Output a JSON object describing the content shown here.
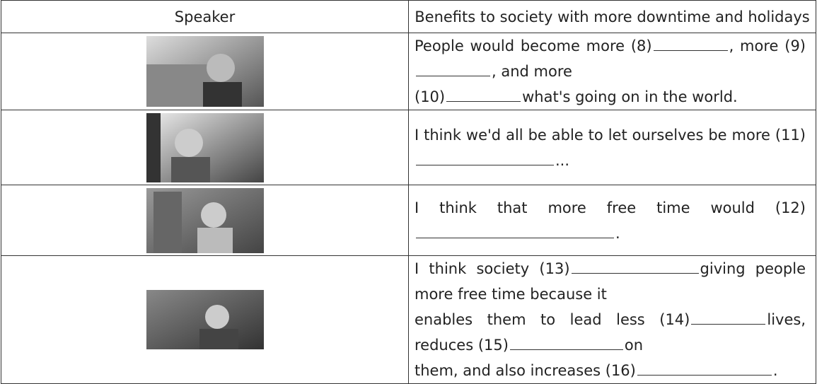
{
  "table": {
    "header": [
      "Speaker",
      "Benefits to society with more downtime and holidays"
    ],
    "rows": [
      {
        "text": [
          "People would become more (8)",
          ", more (9)",
          ", and more",
          "(10)",
          "what's going on in the world."
        ]
      },
      {
        "text": [
          "I think we'd all be able to let ourselves be more (11)",
          "..."
        ]
      },
      {
        "text": [
          "I think that more free time would (12)",
          "."
        ]
      },
      {
        "text": [
          "I think society (13)",
          "giving people more free time because it",
          "enables them to lead less (14)",
          "lives, reduces (15)",
          "on",
          "them, and also increases (16)",
          "."
        ]
      }
    ]
  }
}
